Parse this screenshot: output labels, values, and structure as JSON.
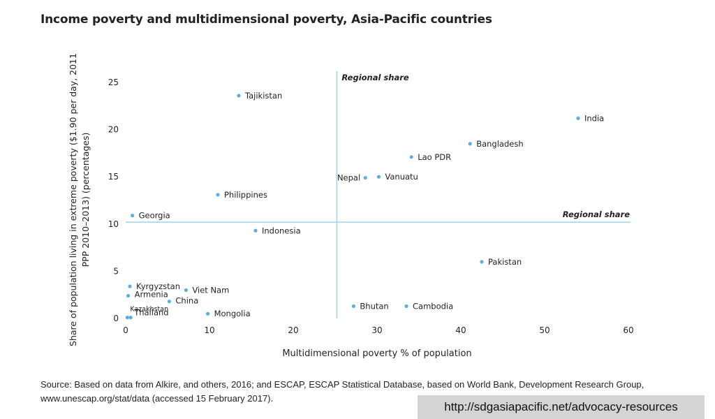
{
  "title": "Income poverty and multidimensional poverty, Asia-Pacific countries",
  "chart_data": {
    "type": "scatter",
    "title": "Income poverty and multidimensional poverty, Asia-Pacific countries",
    "xlabel": "Multidimensional poverty  % of population",
    "ylabel": "Share of population living in extreme poverty ($1.90 per day, 2011 PPP 2010–2013) (percentages)",
    "xlim": [
      0,
      60
    ],
    "ylim": [
      0,
      25
    ],
    "x_ticks": [
      0,
      10,
      20,
      30,
      40,
      50,
      60
    ],
    "y_ticks": [
      0,
      5,
      10,
      15,
      20,
      25
    ],
    "grid": false,
    "point_color": "#5aaee0",
    "line_color": "#9fd2ef",
    "reference_lines": [
      {
        "orientation": "vertical",
        "value": 25.2,
        "label": "Regional share"
      },
      {
        "orientation": "horizontal",
        "value": 10.2,
        "label": "Regional share"
      }
    ],
    "points": [
      {
        "label": "Tajikistan",
        "x": 13.5,
        "y": 23.6
      },
      {
        "label": "India",
        "x": 54.0,
        "y": 21.2
      },
      {
        "label": "Bangladesh",
        "x": 41.1,
        "y": 18.5
      },
      {
        "label": "Lao PDR",
        "x": 34.1,
        "y": 17.1
      },
      {
        "label": "Nepal",
        "x": 28.6,
        "y": 14.9
      },
      {
        "label": "Vanuatu",
        "x": 30.2,
        "y": 15.0
      },
      {
        "label": "Philippines",
        "x": 11.0,
        "y": 13.1
      },
      {
        "label": "Georgia",
        "x": 0.8,
        "y": 10.9
      },
      {
        "label": "Indonesia",
        "x": 15.5,
        "y": 9.3
      },
      {
        "label": "Pakistan",
        "x": 42.5,
        "y": 6.0
      },
      {
        "label": "Kyrgyzstan",
        "x": 0.5,
        "y": 3.4
      },
      {
        "label": "Viet Nam",
        "x": 7.2,
        "y": 3.0
      },
      {
        "label": "Armenia",
        "x": 0.3,
        "y": 2.4
      },
      {
        "label": "China",
        "x": 5.2,
        "y": 1.8
      },
      {
        "label": "Kazakhstan",
        "x": 0.2,
        "y": 0.1
      },
      {
        "label": "Thailand",
        "x": 0.6,
        "y": 0.1
      },
      {
        "label": "Mongolia",
        "x": 9.8,
        "y": 0.5
      },
      {
        "label": "Bhutan",
        "x": 27.2,
        "y": 1.3
      },
      {
        "label": "Cambodia",
        "x": 33.5,
        "y": 1.3
      }
    ]
  },
  "source": "Source: Based on data from Alkire, and others, 2016; and  ESCAP, ESCAP Statistical Database, based on World Bank, Development Research Group, www.unescap.org/stat/data (accessed 15 February 2017).",
  "url": "http://sdgasiapacific.net/advocacy-resources"
}
